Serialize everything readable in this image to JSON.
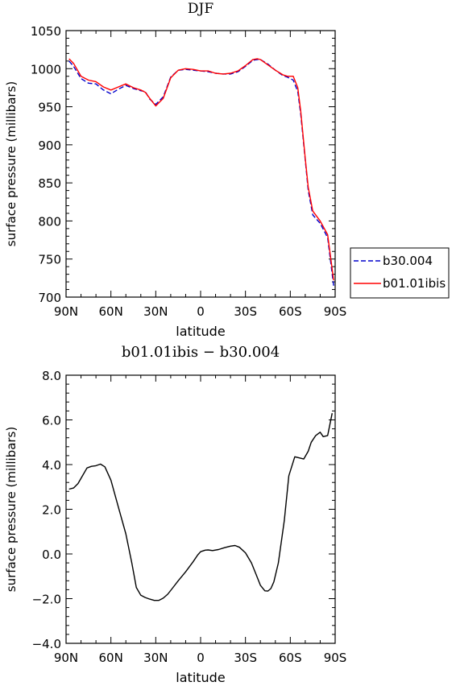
{
  "chart_data": [
    {
      "type": "line",
      "title": "DJF",
      "xlabel": "latitude",
      "ylabel": "surface pressure (millibars)",
      "xlim": [
        90,
        -90
      ],
      "ylim": [
        700,
        1050
      ],
      "xticks": [
        90,
        60,
        30,
        0,
        -30,
        -60,
        -90
      ],
      "xtick_labels": [
        "90N",
        "60N",
        "30N",
        "0",
        "30S",
        "60S",
        "90S"
      ],
      "yticks": [
        700,
        750,
        800,
        850,
        900,
        950,
        1000,
        1050
      ],
      "ytick_labels": [
        "700",
        "750",
        "800",
        "850",
        "900",
        "950",
        "1000",
        "1050"
      ],
      "legend": "outside-right",
      "series": [
        {
          "name": "b30.004",
          "color": "#0000cc",
          "dash": "dashed",
          "x": [
            88,
            85,
            80,
            75,
            70,
            65,
            60,
            55,
            50,
            45,
            40,
            37,
            34,
            30,
            25,
            20,
            15,
            10,
            5,
            0,
            -5,
            -10,
            -15,
            -20,
            -25,
            -30,
            -35,
            -38,
            -40,
            -45,
            -50,
            -55,
            -58,
            -62,
            -65,
            -67,
            -70,
            -72,
            -75,
            -80,
            -85,
            -89
          ],
          "y": [
            1010,
            1003,
            987,
            981,
            980,
            972,
            967,
            973,
            978,
            974,
            971,
            970,
            960,
            953,
            963,
            989,
            998,
            999,
            998,
            997,
            996,
            994,
            993,
            993,
            996,
            1003,
            1011,
            1012,
            1012,
            1006,
            998,
            991,
            989,
            985,
            970,
            940,
            880,
            840,
            808,
            797,
            778,
            715
          ]
        },
        {
          "name": "b01.01ibis",
          "color": "#ff0000",
          "dash": "solid",
          "x": [
            88,
            85,
            80,
            75,
            70,
            65,
            60,
            55,
            50,
            45,
            40,
            37,
            34,
            30,
            25,
            20,
            15,
            10,
            5,
            0,
            -5,
            -10,
            -15,
            -20,
            -25,
            -30,
            -35,
            -38,
            -40,
            -45,
            -50,
            -55,
            -58,
            -62,
            -65,
            -67,
            -70,
            -72,
            -75,
            -80,
            -85,
            -89
          ],
          "y": [
            1013,
            1007,
            990,
            985,
            983,
            976,
            972,
            976,
            980,
            975,
            972,
            969,
            961,
            951,
            961,
            988,
            998,
            1000,
            999,
            997,
            997,
            994,
            993,
            994,
            997,
            1004,
            1012,
            1013,
            1012,
            1005,
            998,
            992,
            990,
            990,
            975,
            944,
            882,
            844,
            813,
            800,
            782,
            722
          ]
        }
      ]
    },
    {
      "type": "line",
      "title": "b01.01ibis − b30.004",
      "xlabel": "latitude",
      "ylabel": "surface pressure (millibars)",
      "xlim": [
        90,
        -90
      ],
      "ylim": [
        -4,
        8
      ],
      "xticks": [
        90,
        60,
        30,
        0,
        -30,
        -60,
        -90
      ],
      "xtick_labels": [
        "90N",
        "60N",
        "30N",
        "0",
        "30S",
        "60S",
        "90S"
      ],
      "yticks": [
        -4,
        -2,
        0,
        2,
        4,
        6,
        8
      ],
      "ytick_labels": [
        "−4.0",
        "−2.0",
        "0.0",
        "2.0",
        "4.0",
        "6.0",
        "8.0"
      ],
      "series": [
        {
          "color": "#000000",
          "dash": "solid",
          "x": [
            88,
            85,
            82,
            79,
            76,
            73,
            70,
            67,
            64,
            60,
            55,
            50,
            46,
            43,
            40,
            37,
            34,
            31,
            28,
            25,
            22,
            19,
            15,
            10,
            5,
            2,
            0,
            -3,
            -5,
            -8,
            -12,
            -16,
            -20,
            -23,
            -26,
            -30,
            -34,
            -37,
            -40,
            -43,
            -45,
            -47,
            -49,
            -52,
            -56,
            -59,
            -63,
            -66,
            -69,
            -72,
            -74,
            -77,
            -80,
            -82,
            -85,
            -88
          ],
          "y": [
            2.9,
            2.95,
            3.15,
            3.5,
            3.85,
            3.92,
            3.95,
            4.02,
            3.9,
            3.3,
            2.1,
            0.9,
            -0.4,
            -1.5,
            -1.85,
            -1.95,
            -2.02,
            -2.08,
            -2.08,
            -1.98,
            -1.8,
            -1.55,
            -1.2,
            -0.8,
            -0.35,
            -0.05,
            0.1,
            0.17,
            0.18,
            0.15,
            0.2,
            0.28,
            0.35,
            0.38,
            0.3,
            0.05,
            -0.4,
            -0.9,
            -1.4,
            -1.65,
            -1.66,
            -1.55,
            -1.25,
            -0.4,
            1.5,
            3.5,
            4.35,
            4.3,
            4.25,
            4.6,
            5.0,
            5.3,
            5.45,
            5.25,
            5.3,
            6.3
          ]
        }
      ]
    }
  ]
}
